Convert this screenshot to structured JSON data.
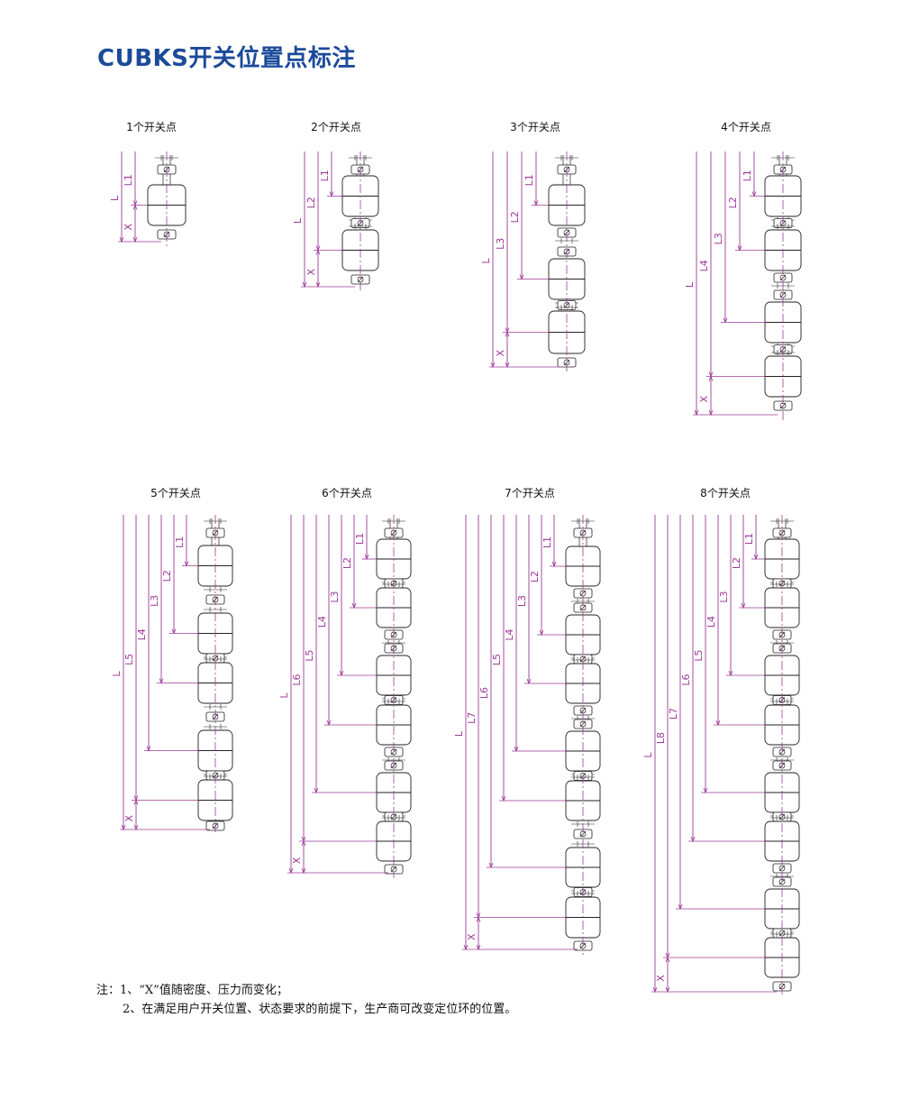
{
  "title": "CUBKS开关位置点标注",
  "diagrams": [
    {
      "title": "1个开关点",
      "switch_count": 1
    },
    {
      "title": "2个开关点",
      "switch_count": 2
    },
    {
      "title": "3个开关点",
      "switch_count": 3
    },
    {
      "title": "4个开关点",
      "switch_count": 4
    },
    {
      "title": "5个开关点",
      "switch_count": 5
    },
    {
      "title": "6个开关点",
      "switch_count": 6
    },
    {
      "title": "7个开关点",
      "switch_count": 7
    },
    {
      "title": "8个开关点",
      "switch_count": 8
    }
  ],
  "dimension_labels": {
    "total": "L",
    "prefix": "L",
    "offset": "X"
  },
  "notes": [
    "注：1、“X”值随密度、压力而变化；",
    "2、在满足用户开关位置、状态要求的前提下，生产商可改变定位环的位置。"
  ],
  "colors": {
    "title": "#1b4a9a",
    "dimension": "#9b3a96",
    "drawing": "#222222"
  }
}
